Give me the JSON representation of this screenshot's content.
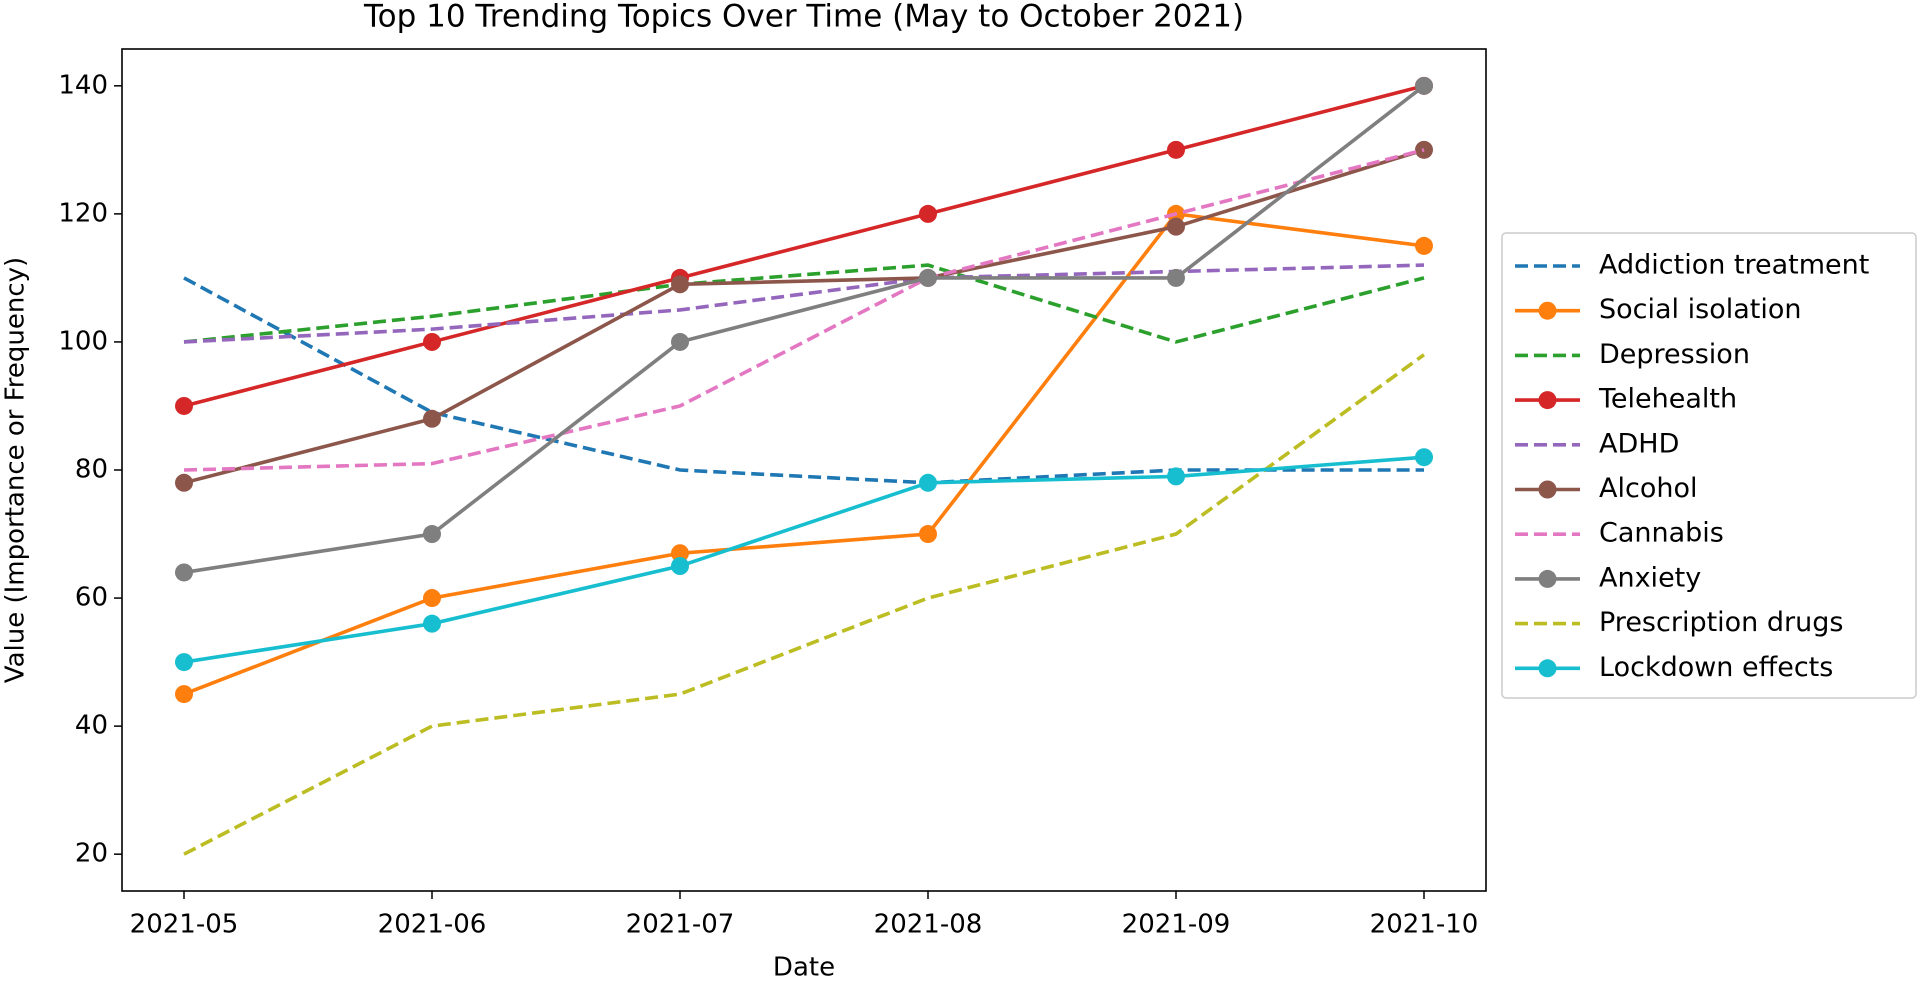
{
  "chart_data": {
    "type": "line",
    "title": "Top 10 Trending Topics Over Time (May to October 2021)",
    "x_label": "Date",
    "y_label": "Value (Importance or Frequency)",
    "categories": [
      "2021-05",
      "2021-06",
      "2021-07",
      "2021-08",
      "2021-09",
      "2021-10"
    ],
    "ylim": [
      14.25,
      145.75
    ],
    "yticks": [
      20,
      40,
      60,
      80,
      100,
      120,
      140
    ],
    "grid": false,
    "legend": "right",
    "series": [
      {
        "name": "Addiction treatment",
        "color": "#1f77b4",
        "dashed": true,
        "marker": false,
        "values": [
          110,
          89,
          80,
          78,
          80,
          80
        ]
      },
      {
        "name": "Social isolation",
        "color": "#ff7f0e",
        "dashed": false,
        "marker": true,
        "values": [
          45,
          60,
          67,
          70,
          120,
          115
        ]
      },
      {
        "name": "Depression",
        "color": "#2ca02c",
        "dashed": true,
        "marker": false,
        "values": [
          100,
          104,
          109,
          112,
          100,
          110
        ]
      },
      {
        "name": "Telehealth",
        "color": "#d62728",
        "dashed": false,
        "marker": true,
        "values": [
          90,
          100,
          110,
          120,
          130,
          140
        ]
      },
      {
        "name": "ADHD",
        "color": "#9467bd",
        "dashed": true,
        "marker": false,
        "values": [
          100,
          102,
          105,
          110,
          111,
          112
        ]
      },
      {
        "name": "Alcohol",
        "color": "#8c564b",
        "dashed": false,
        "marker": true,
        "values": [
          78,
          88,
          109,
          110,
          118,
          130
        ]
      },
      {
        "name": "Cannabis",
        "color": "#e377c2",
        "dashed": true,
        "marker": false,
        "values": [
          80,
          81,
          90,
          110,
          120,
          130
        ]
      },
      {
        "name": "Anxiety",
        "color": "#7f7f7f",
        "dashed": false,
        "marker": true,
        "values": [
          64,
          70,
          100,
          110,
          110,
          140
        ]
      },
      {
        "name": "Prescription drugs",
        "color": "#bcbd22",
        "dashed": true,
        "marker": false,
        "values": [
          20,
          40,
          45,
          60,
          70,
          98
        ]
      },
      {
        "name": "Lockdown effects",
        "color": "#17becf",
        "dashed": false,
        "marker": true,
        "values": [
          50,
          56,
          65,
          78,
          79,
          82
        ]
      }
    ]
  }
}
